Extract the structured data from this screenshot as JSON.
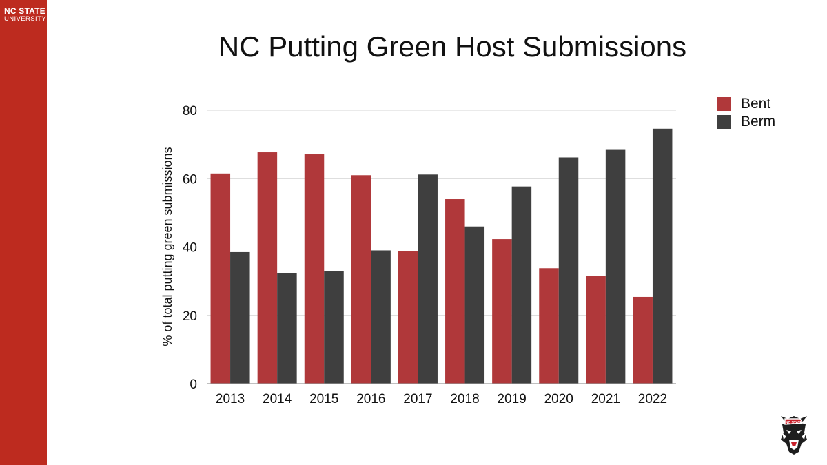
{
  "brand": {
    "line1": "NC STATE",
    "line2": "UNIVERSITY"
  },
  "colors": {
    "sidebar": "#bd2b1f",
    "bent": "#b0383a",
    "berm": "#3f3f3f"
  },
  "mascot": {
    "icon": "wolf-mascot-icon"
  },
  "chart_data": {
    "type": "bar",
    "title": "NC Putting Green Host Submissions",
    "xlabel": "",
    "ylabel": "% of total putting green submissions",
    "ylim": [
      0,
      80
    ],
    "yticks": [
      0,
      20,
      40,
      60,
      80
    ],
    "grid": true,
    "legend_position": "top-right",
    "categories": [
      "2013",
      "2014",
      "2015",
      "2016",
      "2017",
      "2018",
      "2019",
      "2020",
      "2021",
      "2022"
    ],
    "series": [
      {
        "name": "Bent",
        "color": "#b0383a",
        "values": [
          61.5,
          67.7,
          67.1,
          61.0,
          38.8,
          54.0,
          42.3,
          33.8,
          31.6,
          25.4
        ]
      },
      {
        "name": "Berm",
        "color": "#3f3f3f",
        "values": [
          38.5,
          32.3,
          32.9,
          39.0,
          61.2,
          46.0,
          57.7,
          66.2,
          68.4,
          74.6
        ]
      }
    ]
  }
}
